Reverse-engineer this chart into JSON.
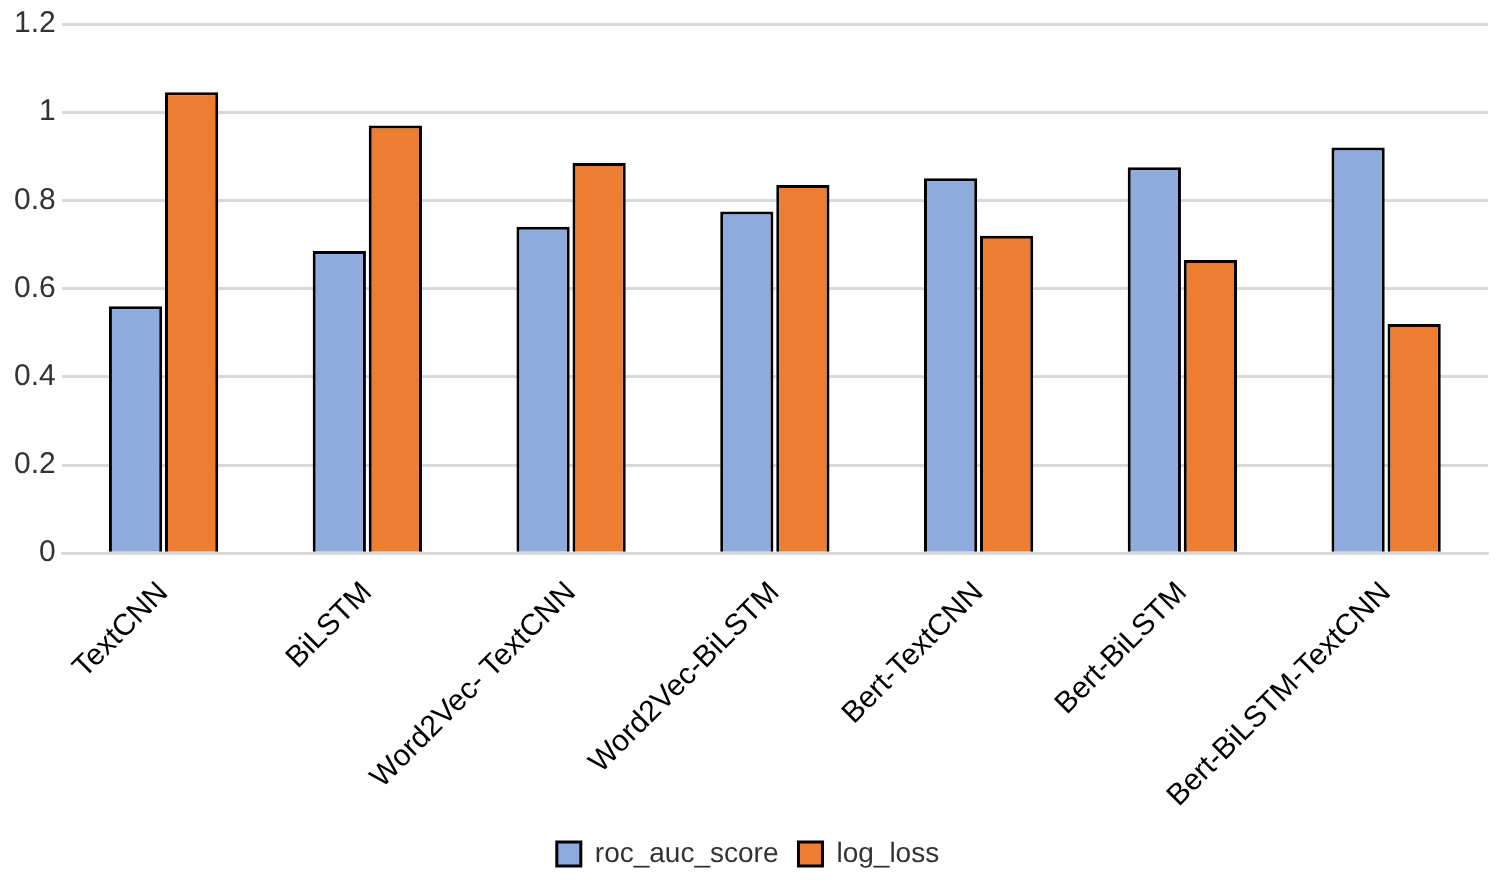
{
  "chart_data": {
    "type": "bar",
    "categories": [
      "TextCNN",
      "BiLSTM",
      "Word2Vec- TextCNN",
      "Word2Vec-BiLSTM",
      "Bert-TextCNN",
      "Bert-BiLSTM",
      "Bert-BiLSTM-TextCNN"
    ],
    "series": [
      {
        "name": "roc_auc_score",
        "color": "#8faadc",
        "values": [
          0.56,
          0.685,
          0.74,
          0.775,
          0.85,
          0.875,
          0.92
        ]
      },
      {
        "name": "log_loss",
        "color": "#ed7d31",
        "values": [
          1.045,
          0.97,
          0.885,
          0.835,
          0.72,
          0.665,
          0.52
        ]
      }
    ],
    "ylim": [
      0,
      1.2
    ],
    "yticks": [
      0,
      0.2,
      0.4,
      0.6,
      0.8,
      1,
      1.2
    ],
    "grid": "y",
    "legend": "bottom"
  }
}
